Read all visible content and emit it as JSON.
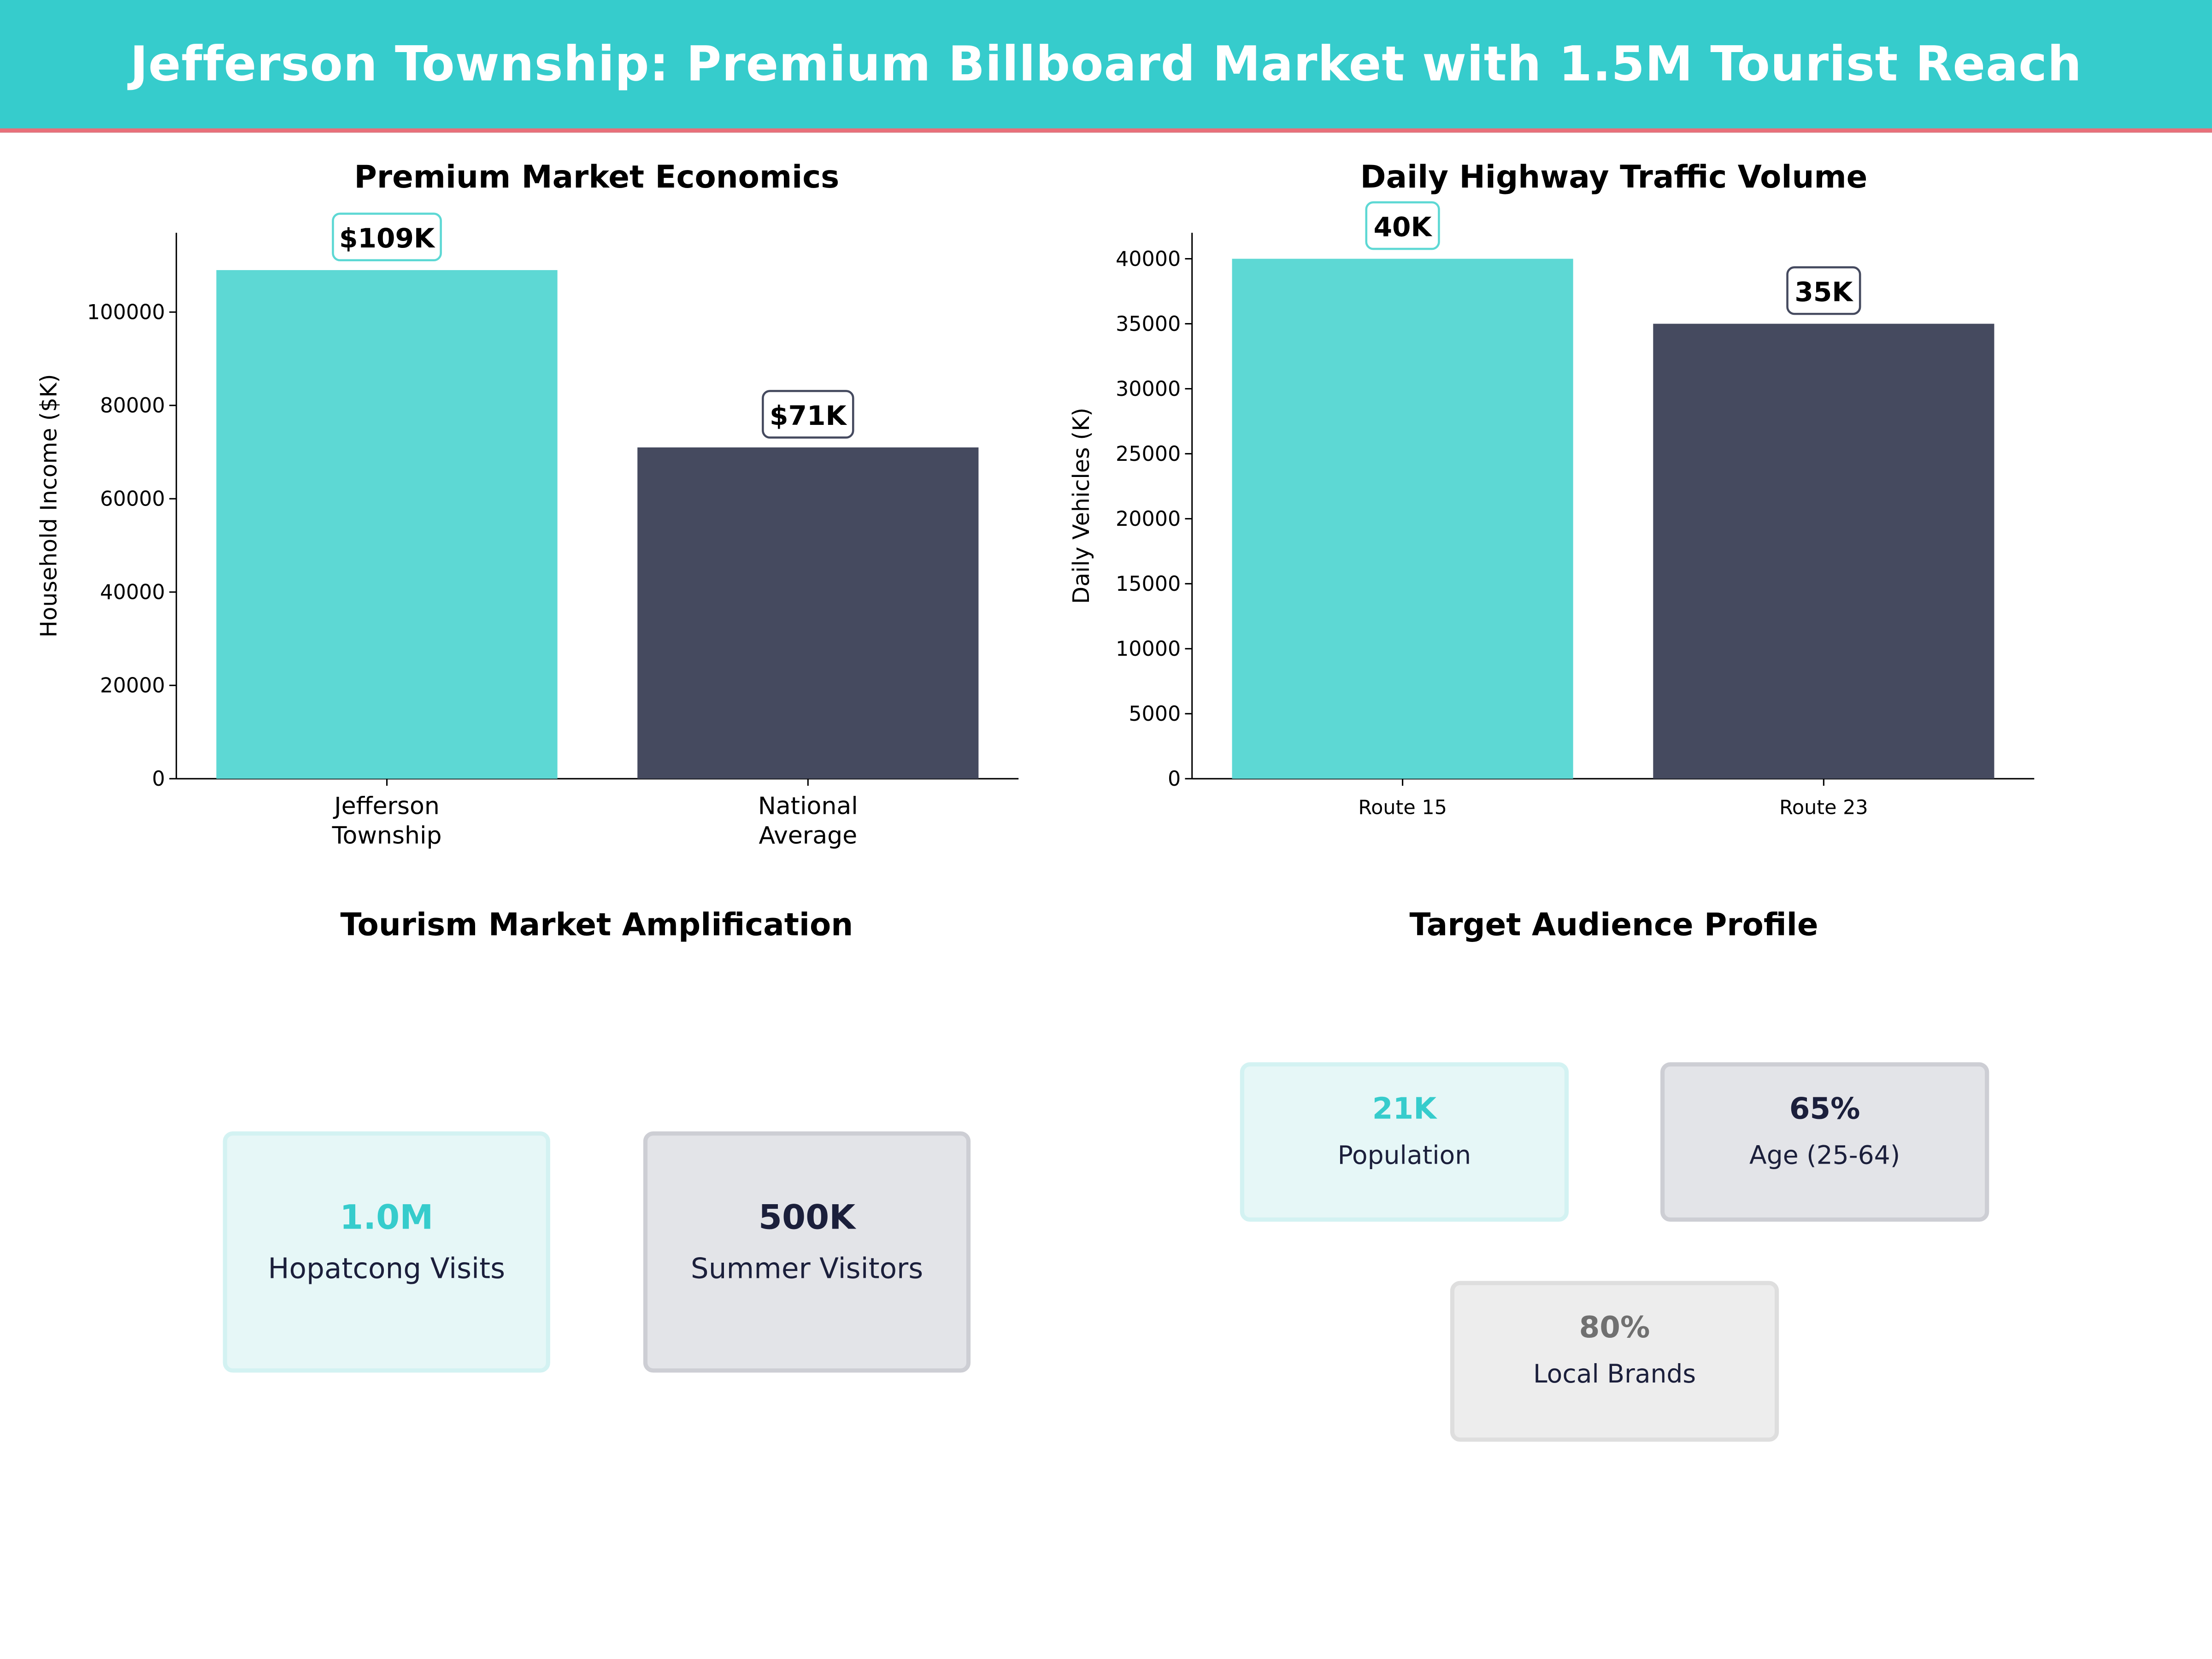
{
  "title": "Jefferson Township: Premium Billboard Market with 1.5M Tourist Reach",
  "colors": {
    "header": "#36CCCC",
    "accent_line": "#E8707A",
    "teal": "#5DD8D4",
    "dark": "#454A5F"
  },
  "chart_data": [
    {
      "type": "bar",
      "title": "Premium Market Economics",
      "xlabel": "",
      "ylabel": "Household Income ($K)",
      "categories": [
        "Jefferson\nTownship",
        "National\nAverage"
      ],
      "values": [
        109000,
        71000
      ],
      "data_labels": [
        "$109K",
        "$71K"
      ],
      "colors": [
        "#5DD8D4",
        "#454A5F"
      ],
      "ylim": [
        0,
        117000
      ],
      "yticks": [
        0,
        20000,
        40000,
        60000,
        80000,
        100000
      ],
      "grid": false
    },
    {
      "type": "bar",
      "title": "Daily Highway Traffic Volume",
      "xlabel": "",
      "ylabel": "Daily Vehicles (K)",
      "categories": [
        "Route 15",
        "Route 23"
      ],
      "values": [
        40000,
        35000
      ],
      "data_labels": [
        "40K",
        "35K"
      ],
      "colors": [
        "#5DD8D4",
        "#454A5F"
      ],
      "ylim": [
        0,
        42000
      ],
      "yticks": [
        0,
        5000,
        10000,
        15000,
        20000,
        25000,
        30000,
        35000,
        40000
      ],
      "grid": false
    }
  ],
  "tourism": {
    "title": "Tourism Market Amplification",
    "cards": [
      {
        "value": "1.0M",
        "label": "Hopatcong Visits"
      },
      {
        "value": "500K",
        "label": "Summer Visitors"
      }
    ]
  },
  "audience": {
    "title": "Target Audience Profile",
    "cards": [
      {
        "value": "21K",
        "label": "Population"
      },
      {
        "value": "65%",
        "label": "Age (25-64)"
      },
      {
        "value": "80%",
        "label": "Local Brands"
      }
    ]
  }
}
